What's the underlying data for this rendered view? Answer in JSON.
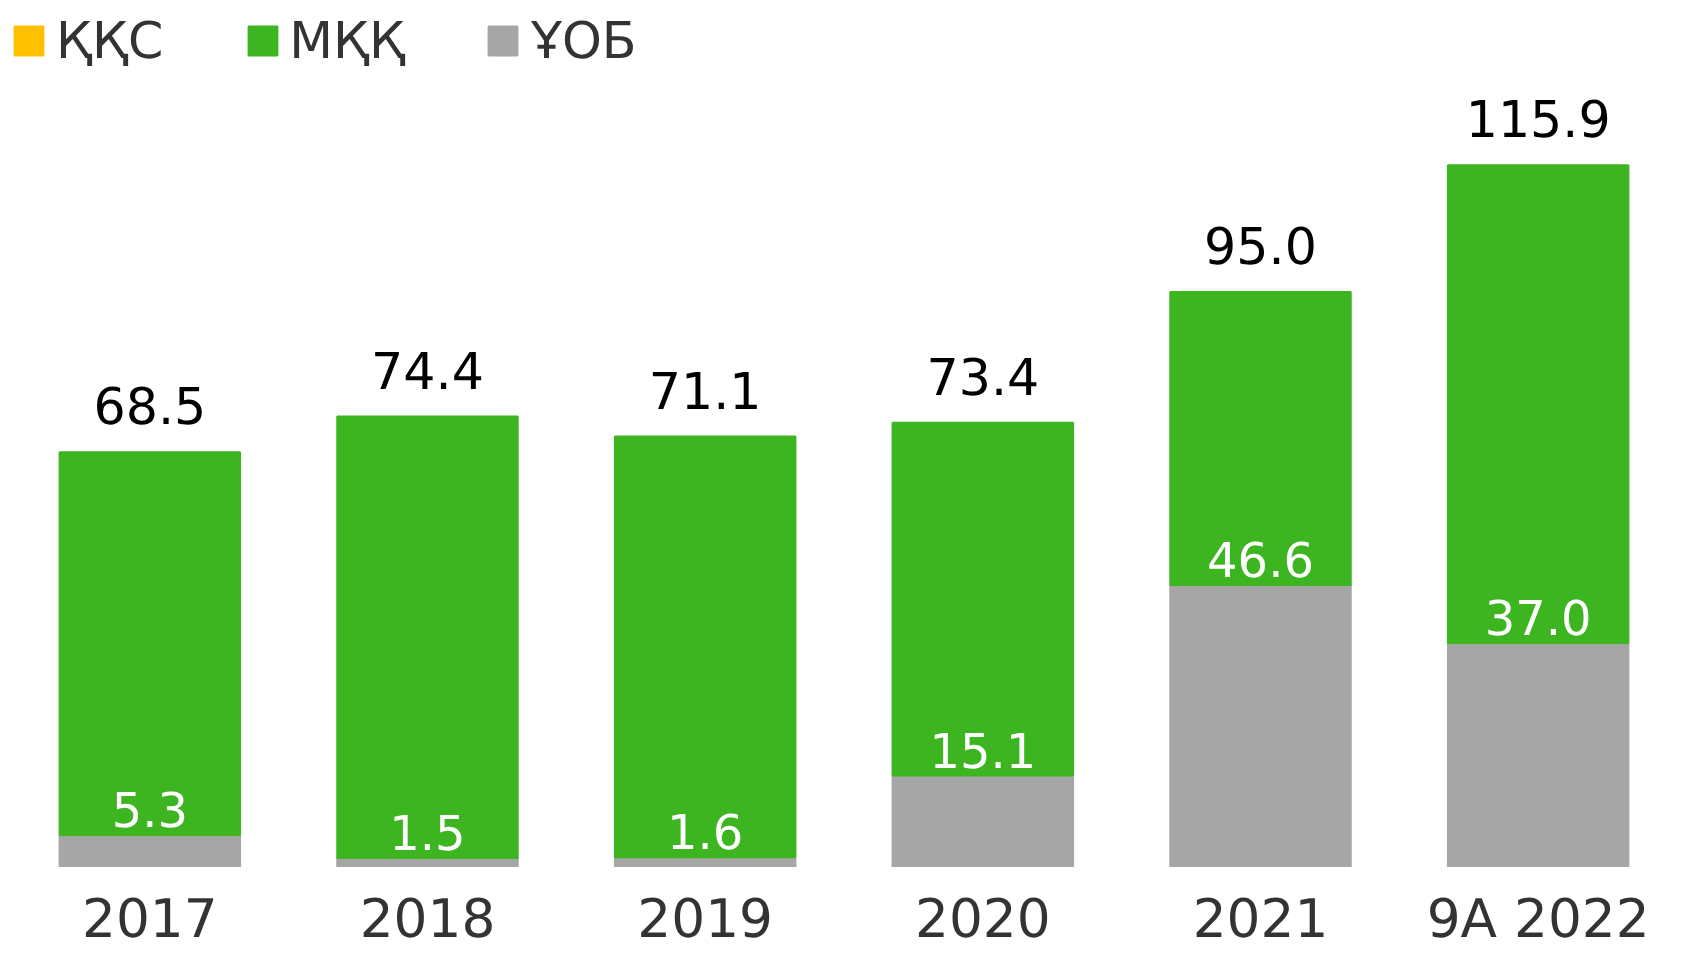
{
  "chart_data": {
    "type": "bar",
    "stacked": true,
    "categories": [
      "2017",
      "2018",
      "2019",
      "2020",
      "2021",
      "9А 2022"
    ],
    "series": [
      {
        "name": "ҰОБ",
        "color": "#a6a6a6",
        "values": [
          5.3,
          1.5,
          1.6,
          15.1,
          46.6,
          37.0
        ],
        "value_labels": [
          "5.3",
          "1.5",
          "1.6",
          "15.1",
          "46.6",
          "37.0"
        ]
      },
      {
        "name": "МҚҚ",
        "color": "#3cb521",
        "values": [
          63.2,
          72.9,
          69.5,
          58.3,
          48.4,
          78.9
        ]
      },
      {
        "name": "ҚҚС",
        "color": "#ffc000",
        "values": [
          null,
          null,
          null,
          null,
          null,
          null
        ]
      }
    ],
    "totals": [
      "68.5",
      "74.4",
      "71.1",
      "73.4",
      "95.0",
      "115.9"
    ],
    "legend": "top left",
    "grid": false
  }
}
